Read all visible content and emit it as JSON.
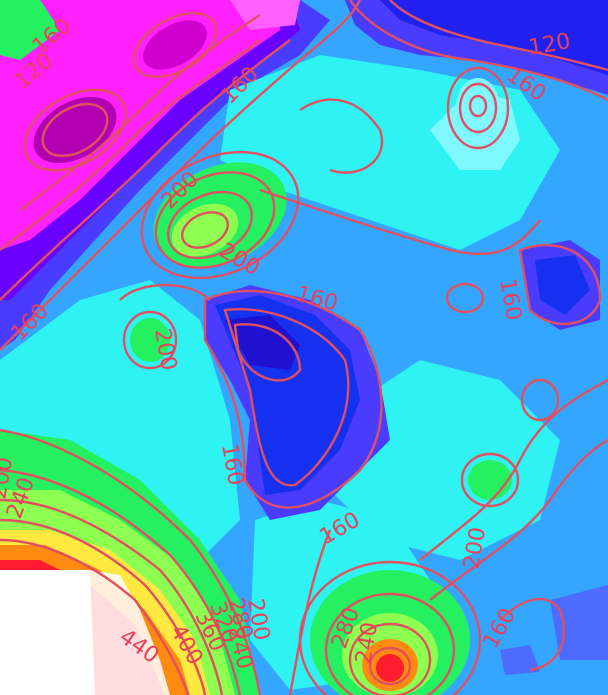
{
  "colors": {
    "background": "#35a6ff",
    "contour_line": "#e05060",
    "label": "#e8415a",
    "cyan_light": "#2ff2f2",
    "cyan_pale": "#7ff8ff",
    "blue_mid": "#4d6cff",
    "blue_deep": "#1630f0",
    "violet": "#6a00ff",
    "magenta": "#ff20ff",
    "purple_core": "#b000b0",
    "green": "#24f060",
    "green_light": "#8cff50",
    "yellow": "#ffe840",
    "orange": "#ff8a10",
    "red": "#ff1c2c",
    "white_void": "#ffffff"
  },
  "contour_labels": [
    "120",
    "160",
    "200",
    "240",
    "280",
    "320",
    "360",
    "400",
    "440"
  ],
  "labels": [
    {
      "text": "160"
    },
    {
      "text": "120"
    },
    {
      "text": "160"
    },
    {
      "text": "120"
    },
    {
      "text": "160"
    },
    {
      "text": "200"
    },
    {
      "text": "160"
    },
    {
      "text": "160"
    },
    {
      "text": "200"
    },
    {
      "text": "200"
    },
    {
      "text": "160"
    },
    {
      "text": "160"
    },
    {
      "text": "160"
    },
    {
      "text": "200"
    },
    {
      "text": "240"
    },
    {
      "text": "280"
    },
    {
      "text": "200"
    },
    {
      "text": "240"
    },
    {
      "text": "160"
    },
    {
      "text": "440"
    },
    {
      "text": "400"
    },
    {
      "text": "360"
    },
    {
      "text": "320"
    },
    {
      "text": "280"
    },
    {
      "text": "200"
    },
    {
      "text": "240"
    }
  ]
}
